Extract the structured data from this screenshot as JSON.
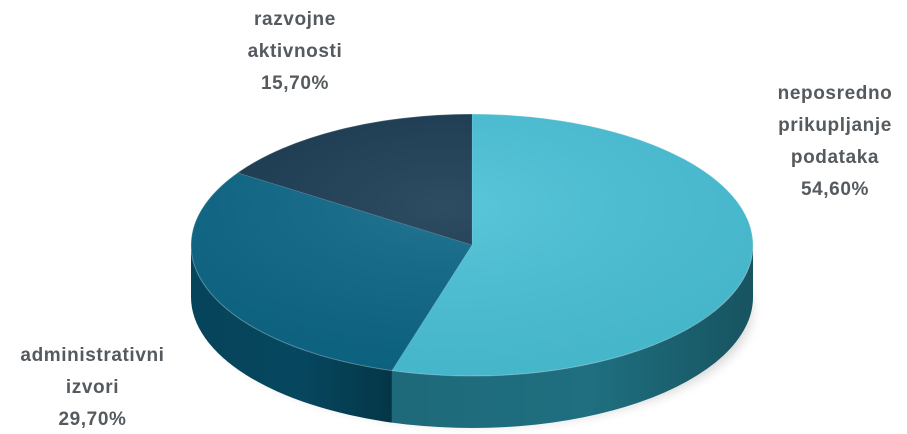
{
  "chart_data": {
    "type": "pie",
    "style": "3d",
    "title": "",
    "categories": [
      "neposredno prikupljanje podataka",
      "administrativni izvori",
      "razvojne aktivnosti"
    ],
    "values": [
      54.6,
      29.7,
      15.7
    ],
    "unit": "%",
    "colors": [
      "#48c0d6",
      "#0a6585",
      "#173850"
    ],
    "side_colors": [
      "#1f6f80",
      "#06475f",
      "#0c2536"
    ],
    "label_color": "#555a5e",
    "data_labels": [
      {
        "lines": [
          "neposredno",
          "prikupljanje",
          "podataka",
          "54,60%"
        ]
      },
      {
        "lines": [
          "administrativni",
          "izvori",
          "29,70%"
        ]
      },
      {
        "lines": [
          "razvojne",
          "aktivnosti",
          "15,70%"
        ]
      }
    ]
  }
}
